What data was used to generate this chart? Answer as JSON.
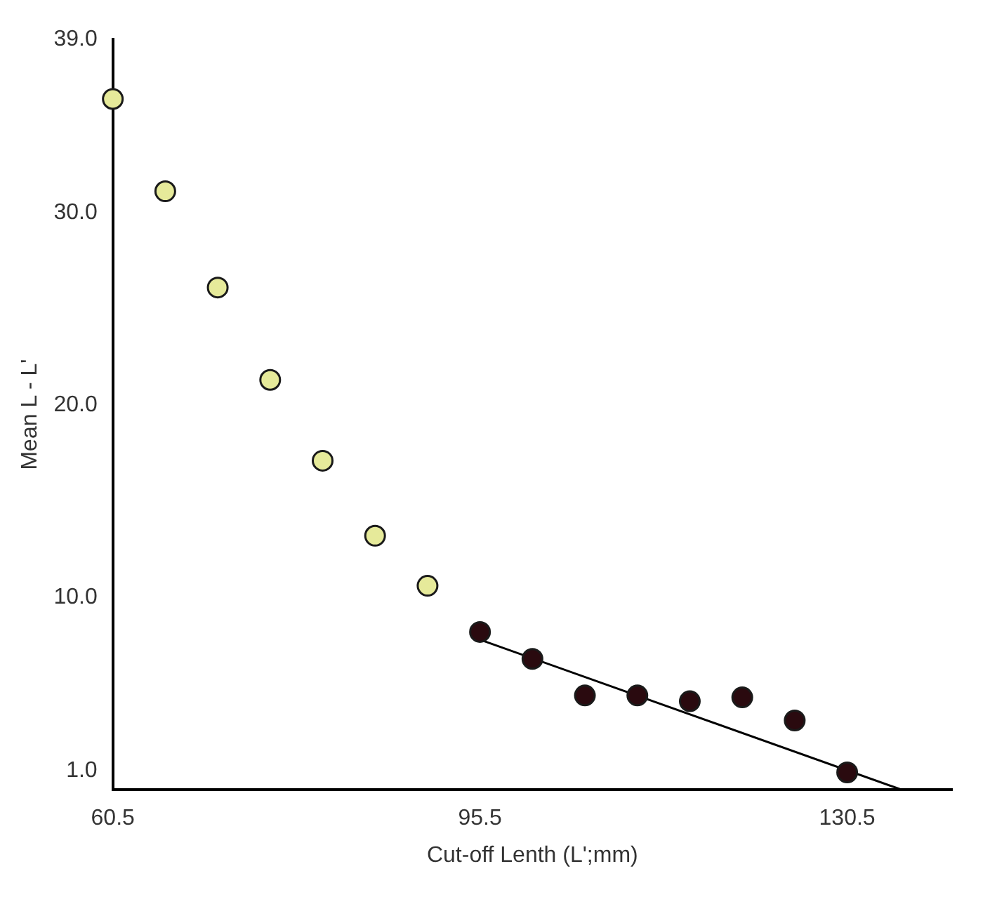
{
  "chart_data": {
    "type": "scatter",
    "xlabel": "Cut-off Lenth (L';mm)",
    "ylabel": "Mean L - L'",
    "xlim": [
      60.5,
      140.5
    ],
    "xticks": [
      60.5,
      95.5,
      130.5
    ],
    "ylim": [
      0,
      39
    ],
    "yticks": [
      {
        "value": 1,
        "label": "1.0"
      },
      {
        "value": 10,
        "label": "10.0"
      },
      {
        "value": 20,
        "label": "20.0"
      },
      {
        "value": 30,
        "label": "30.0"
      },
      {
        "value": 39,
        "label": "39.0"
      }
    ],
    "grid": false,
    "legend": false,
    "series": [
      {
        "marker": "circle",
        "color": "#e6ea9a",
        "x": [
          60.5,
          65.5,
          70.5,
          75.5,
          80.5,
          85.5,
          90.5
        ],
        "values": [
          35.9,
          31.1,
          26.1,
          21.3,
          17.1,
          13.2,
          10.6
        ]
      },
      {
        "marker": "circle",
        "color": "#2a0a0f",
        "x": [
          95.5,
          100.5,
          105.5,
          110.5,
          115.5,
          120.5,
          125.5,
          130.5
        ],
        "values": [
          8.2,
          6.8,
          4.9,
          4.9,
          4.6,
          4.8,
          3.6,
          0.9
        ]
      },
      {
        "type": "line",
        "marker": "none",
        "color": "#000000",
        "x": [
          95.5,
          135.7
        ],
        "values": [
          7.8,
          0
        ]
      }
    ]
  }
}
